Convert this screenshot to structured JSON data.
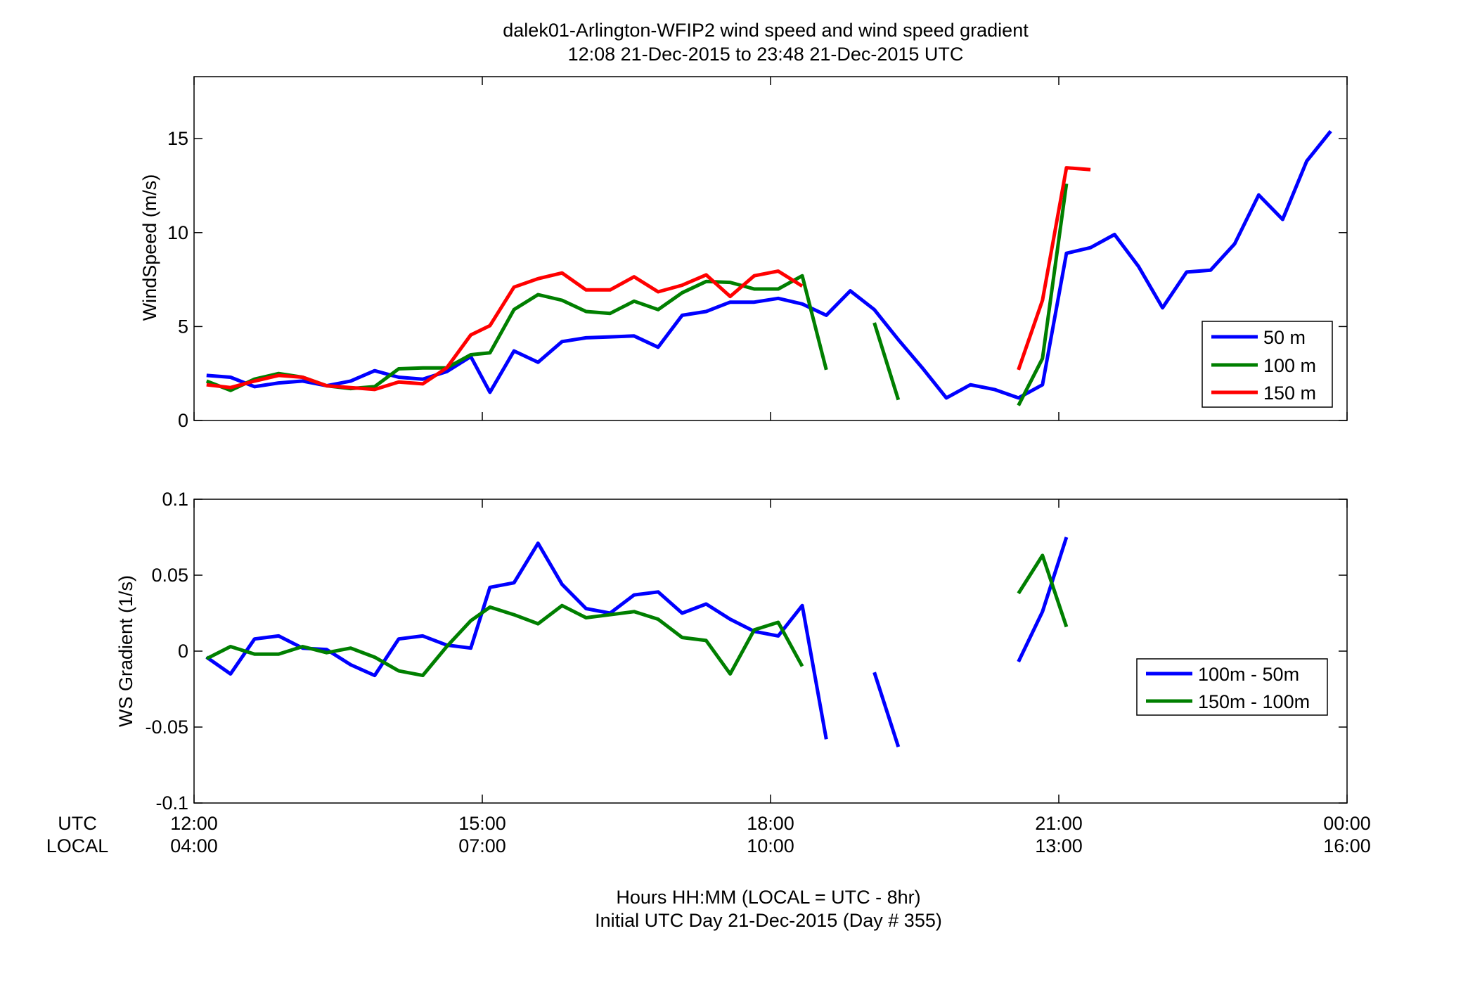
{
  "figure": {
    "title_line1": "dalek01-Arlington-WFIP2  wind speed and wind speed gradient",
    "title_line2": "12:08 21-Dec-2015 to 23:48 21-Dec-2015  UTC",
    "xlabel_line1": "Hours HH:MM  (LOCAL = UTC - 8hr)",
    "xlabel_line2": "Initial UTC Day 21-Dec-2015 (Day # 355)",
    "utc_label": "UTC",
    "local_label": "LOCAL"
  },
  "colors": {
    "blue": "#0000ff",
    "green": "#007f00",
    "red": "#ff0000"
  },
  "chart_data": [
    {
      "type": "line",
      "title": "",
      "ylabel": "WindSpeed (m/s)",
      "xlabel": "",
      "xlim": [
        12.0,
        24.0
      ],
      "ylim": [
        0,
        18.3
      ],
      "yticks": [
        0,
        5,
        10,
        15
      ],
      "ytick_labels": [
        "0",
        "5",
        "10",
        "15"
      ],
      "xticks": [
        12,
        15,
        18,
        21,
        24
      ],
      "grid": false,
      "legend_position": "lower-right",
      "series": [
        {
          "name": "50 m",
          "color": "#0000ff",
          "points": [
            [
              12.13,
              2.4
            ],
            [
              12.38,
              2.3
            ],
            [
              12.63,
              1.8
            ],
            [
              12.88,
              2.0
            ],
            [
              13.13,
              2.1
            ],
            [
              13.38,
              1.85
            ],
            [
              13.63,
              2.1
            ],
            [
              13.88,
              2.65
            ],
            [
              14.13,
              2.3
            ],
            [
              14.38,
              2.2
            ],
            [
              14.63,
              2.6
            ],
            [
              14.88,
              3.4
            ],
            [
              15.08,
              1.5
            ],
            [
              15.33,
              3.7
            ],
            [
              15.58,
              3.1
            ],
            [
              15.83,
              4.2
            ],
            [
              16.08,
              4.4
            ],
            [
              16.33,
              4.45
            ],
            [
              16.58,
              4.5
            ],
            [
              16.83,
              3.9
            ],
            [
              17.08,
              5.6
            ],
            [
              17.33,
              5.8
            ],
            [
              17.58,
              6.3
            ],
            [
              17.83,
              6.3
            ],
            [
              18.08,
              6.5
            ],
            [
              18.33,
              6.2
            ],
            [
              18.58,
              5.6
            ],
            [
              18.83,
              6.9
            ],
            [
              19.08,
              5.9
            ],
            [
              19.33,
              4.3
            ],
            [
              19.58,
              2.8
            ],
            [
              19.83,
              1.2
            ],
            [
              20.08,
              1.9
            ],
            [
              20.33,
              1.65
            ],
            [
              20.58,
              1.2
            ],
            [
              20.83,
              1.9
            ],
            [
              21.08,
              8.9
            ],
            [
              21.33,
              9.2
            ],
            [
              21.58,
              9.9
            ],
            [
              21.83,
              8.2
            ],
            [
              22.08,
              6.0
            ],
            [
              22.33,
              7.9
            ],
            [
              22.58,
              8.0
            ],
            [
              22.83,
              9.4
            ],
            [
              23.08,
              12.0
            ],
            [
              23.33,
              10.7
            ],
            [
              23.58,
              13.8
            ],
            [
              23.83,
              15.4
            ]
          ]
        },
        {
          "name": "100 m",
          "color": "#007f00",
          "segments": [
            [
              [
                12.13,
                2.1
              ],
              [
                12.38,
                1.6
              ],
              [
                12.63,
                2.2
              ],
              [
                12.88,
                2.5
              ],
              [
                13.13,
                2.3
              ],
              [
                13.38,
                1.85
              ],
              [
                13.63,
                1.7
              ],
              [
                13.88,
                1.8
              ],
              [
                14.13,
                2.75
              ],
              [
                14.38,
                2.8
              ],
              [
                14.63,
                2.8
              ],
              [
                14.88,
                3.5
              ],
              [
                15.08,
                3.6
              ],
              [
                15.33,
                5.9
              ],
              [
                15.58,
                6.7
              ],
              [
                15.83,
                6.4
              ],
              [
                16.08,
                5.8
              ],
              [
                16.33,
                5.7
              ],
              [
                16.58,
                6.35
              ],
              [
                16.83,
                5.9
              ],
              [
                17.08,
                6.8
              ],
              [
                17.33,
                7.4
              ],
              [
                17.58,
                7.35
              ],
              [
                17.83,
                7.0
              ],
              [
                18.08,
                7.0
              ],
              [
                18.33,
                7.7
              ],
              [
                18.58,
                2.7
              ]
            ],
            [
              [
                19.08,
                5.2
              ],
              [
                19.33,
                1.1
              ]
            ],
            [
              [
                20.58,
                0.8
              ],
              [
                20.83,
                3.3
              ],
              [
                21.08,
                12.6
              ]
            ]
          ]
        },
        {
          "name": "150 m",
          "color": "#ff0000",
          "segments": [
            [
              [
                12.13,
                1.9
              ],
              [
                12.38,
                1.75
              ],
              [
                12.63,
                2.1
              ],
              [
                12.88,
                2.4
              ],
              [
                13.13,
                2.3
              ],
              [
                13.38,
                1.85
              ],
              [
                13.63,
                1.75
              ],
              [
                13.88,
                1.65
              ],
              [
                14.13,
                2.05
              ],
              [
                14.38,
                1.95
              ],
              [
                14.63,
                2.8
              ],
              [
                14.88,
                4.55
              ],
              [
                15.08,
                5.05
              ],
              [
                15.33,
                7.1
              ],
              [
                15.58,
                7.55
              ],
              [
                15.83,
                7.85
              ],
              [
                16.08,
                6.95
              ],
              [
                16.33,
                6.95
              ],
              [
                16.58,
                7.65
              ],
              [
                16.83,
                6.85
              ],
              [
                17.08,
                7.2
              ],
              [
                17.33,
                7.75
              ],
              [
                17.58,
                6.6
              ],
              [
                17.83,
                7.7
              ],
              [
                18.08,
                7.95
              ],
              [
                18.33,
                7.15
              ]
            ],
            [
              [
                20.58,
                2.7
              ],
              [
                20.83,
                6.4
              ],
              [
                21.08,
                13.45
              ],
              [
                21.33,
                13.35
              ]
            ]
          ]
        }
      ]
    },
    {
      "type": "line",
      "title": "",
      "ylabel": "WS Gradient (1/s)",
      "xlabel": "",
      "xlim": [
        12.0,
        24.0
      ],
      "ylim": [
        -0.1,
        0.1
      ],
      "yticks": [
        -0.1,
        -0.05,
        0,
        0.05,
        0.1
      ],
      "ytick_labels": [
        "-0.1",
        "-0.05",
        "0",
        "0.05",
        "0.1"
      ],
      "xticks": [
        12,
        15,
        18,
        21,
        24
      ],
      "xtick_labels_utc": [
        "12:00",
        "15:00",
        "18:00",
        "21:00",
        "00:00"
      ],
      "xtick_labels_local": [
        "04:00",
        "07:00",
        "10:00",
        "13:00",
        "16:00"
      ],
      "grid": false,
      "legend_position": "lower-right",
      "series": [
        {
          "name": "100m - 50m",
          "color": "#0000ff",
          "segments": [
            [
              [
                12.13,
                -0.004
              ],
              [
                12.38,
                -0.015
              ],
              [
                12.63,
                0.008
              ],
              [
                12.88,
                0.01
              ],
              [
                13.13,
                0.002
              ],
              [
                13.38,
                0.001
              ],
              [
                13.63,
                -0.009
              ],
              [
                13.88,
                -0.016
              ],
              [
                14.13,
                0.008
              ],
              [
                14.38,
                0.01
              ],
              [
                14.63,
                0.004
              ],
              [
                14.88,
                0.002
              ],
              [
                15.08,
                0.042
              ],
              [
                15.33,
                0.045
              ],
              [
                15.58,
                0.071
              ],
              [
                15.83,
                0.044
              ],
              [
                16.08,
                0.028
              ],
              [
                16.33,
                0.025
              ],
              [
                16.58,
                0.037
              ],
              [
                16.83,
                0.039
              ],
              [
                17.08,
                0.025
              ],
              [
                17.33,
                0.031
              ],
              [
                17.58,
                0.021
              ],
              [
                17.83,
                0.013
              ],
              [
                18.08,
                0.01
              ],
              [
                18.33,
                0.03
              ],
              [
                18.58,
                -0.058
              ]
            ],
            [
              [
                19.08,
                -0.014
              ],
              [
                19.33,
                -0.063
              ]
            ],
            [
              [
                20.58,
                -0.007
              ],
              [
                20.83,
                0.026
              ],
              [
                21.08,
                0.075
              ]
            ]
          ]
        },
        {
          "name": "150m - 100m",
          "color": "#007f00",
          "segments": [
            [
              [
                12.13,
                -0.005
              ],
              [
                12.38,
                0.003
              ],
              [
                12.63,
                -0.002
              ],
              [
                12.88,
                -0.002
              ],
              [
                13.13,
                0.003
              ],
              [
                13.38,
                -0.001
              ],
              [
                13.63,
                0.002
              ],
              [
                13.88,
                -0.004
              ],
              [
                14.13,
                -0.013
              ],
              [
                14.38,
                -0.016
              ],
              [
                14.63,
                0.003
              ],
              [
                14.88,
                0.02
              ],
              [
                15.08,
                0.029
              ],
              [
                15.33,
                0.024
              ],
              [
                15.58,
                0.018
              ],
              [
                15.83,
                0.03
              ],
              [
                16.08,
                0.022
              ],
              [
                16.33,
                0.024
              ],
              [
                16.58,
                0.026
              ],
              [
                16.83,
                0.021
              ],
              [
                17.08,
                0.009
              ],
              [
                17.33,
                0.007
              ],
              [
                17.58,
                -0.015
              ],
              [
                17.83,
                0.014
              ],
              [
                18.08,
                0.019
              ],
              [
                18.33,
                -0.01
              ]
            ],
            [
              [
                20.58,
                0.038
              ],
              [
                20.83,
                0.063
              ],
              [
                21.08,
                0.016
              ]
            ]
          ]
        }
      ]
    }
  ]
}
